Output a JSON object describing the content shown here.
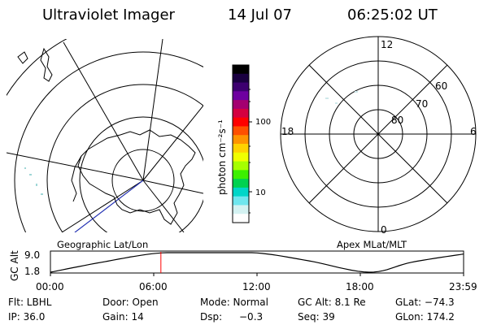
{
  "header": {
    "title": "Ultraviolet Imager",
    "date": "14 Jul 07",
    "time": "06:25:02 UT"
  },
  "panels": {
    "geographic": {
      "label": "Geographic Lat/Lon"
    },
    "apex": {
      "label": "Apex MLat/MLT",
      "lat_labels": [
        "60",
        "70",
        "80"
      ],
      "mlt_labels": {
        "top": "12",
        "bottom": "0",
        "left": "18",
        "right": "6"
      }
    }
  },
  "colorbar": {
    "unit_label": "photon cm⁻²s⁻¹",
    "tick_labels": [
      "100",
      "10"
    ],
    "colors": [
      "#000000",
      "#1a0040",
      "#3d0070",
      "#6e00a0",
      "#a40070",
      "#d40040",
      "#ff0000",
      "#ff5000",
      "#ff9400",
      "#ffd200",
      "#f0ff00",
      "#a6ff00",
      "#3cf000",
      "#00d250",
      "#00d6c8",
      "#6fe6ee",
      "#d4f2f2",
      "#ffffff"
    ]
  },
  "altitude_plot": {
    "ylabel": "GC Alt",
    "y_ticks": [
      "9.0",
      "1.8"
    ],
    "x_ticks": [
      "00:00",
      "06:00",
      "12:00",
      "18:00",
      "23:59"
    ],
    "marker_time": "06:25",
    "curve": {
      "x_hours": [
        0,
        3,
        6.2,
        9,
        12,
        15,
        18.5,
        21,
        23.98
      ],
      "y_alt": [
        1.8,
        5.5,
        8.8,
        9.0,
        8.9,
        6.0,
        1.8,
        5.5,
        8.5
      ]
    }
  },
  "info": {
    "row1": {
      "flt": "Flt: LBHL",
      "door": "Door: Open",
      "mode": "Mode: Normal",
      "gcalt": "GC Alt: 8.1 Re",
      "glat": "GLat: −74.3"
    },
    "row2": {
      "ip": "IP: 36.0",
      "gain": "Gain: 14",
      "dsp_label": "Dsp:",
      "dsp_value": "−0.3",
      "seq": "Seq: 39",
      "glon": "GLon: 174.2"
    }
  }
}
